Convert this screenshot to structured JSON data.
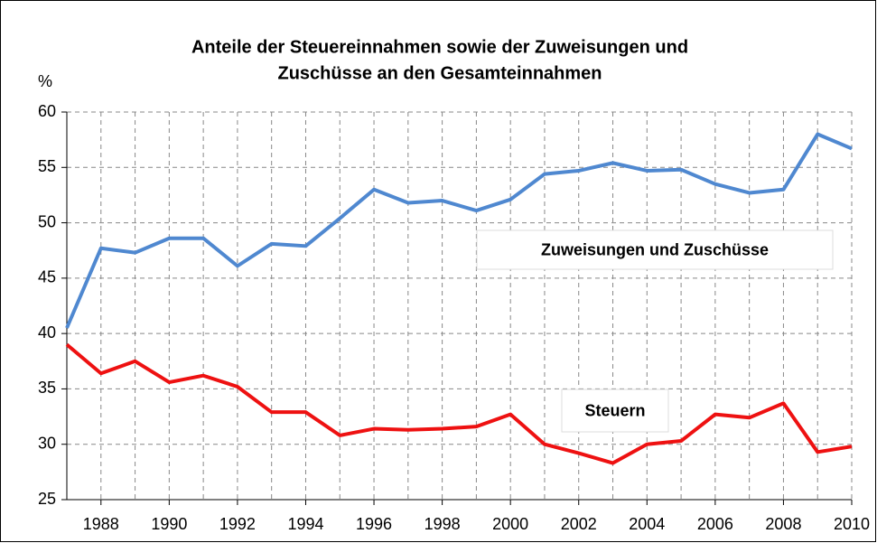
{
  "chart_data": {
    "type": "line",
    "title": [
      "Anteile der Steuereinnahmen sowie der Zuweisungen und",
      "Zuschüsse an den Gesamteinnahmen"
    ],
    "y_label": "%",
    "x": [
      1987,
      1988,
      1989,
      1990,
      1991,
      1992,
      1993,
      1994,
      1995,
      1996,
      1997,
      1998,
      1999,
      2000,
      2001,
      2002,
      2003,
      2004,
      2005,
      2006,
      2007,
      2008,
      2009,
      2010
    ],
    "series": [
      {
        "name": "Zuweisungen und Zuschüsse",
        "color": "#4f88d0",
        "values": [
          40.5,
          47.7,
          47.3,
          48.6,
          48.6,
          46.1,
          48.1,
          47.9,
          50.4,
          53.0,
          51.8,
          52.0,
          51.1,
          52.1,
          54.4,
          54.7,
          55.4,
          54.7,
          54.8,
          53.5,
          52.7,
          53.0,
          58.0,
          56.7
        ]
      },
      {
        "name": "Steuern",
        "color": "#ee1111",
        "values": [
          39.0,
          36.4,
          37.5,
          35.6,
          36.2,
          35.2,
          32.9,
          32.9,
          30.8,
          31.4,
          31.3,
          31.4,
          31.6,
          32.7,
          30.0,
          29.2,
          28.3,
          30.0,
          30.3,
          32.7,
          32.4,
          33.7,
          29.3,
          29.8
        ]
      }
    ],
    "xlim": [
      1987,
      2010
    ],
    "xticks": [
      1988,
      1990,
      1992,
      1994,
      1996,
      1998,
      2000,
      2002,
      2004,
      2006,
      2008,
      2010
    ],
    "ylim": [
      25,
      60
    ],
    "yticks": [
      25,
      30,
      35,
      40,
      45,
      50,
      55,
      60
    ],
    "grid": true
  }
}
